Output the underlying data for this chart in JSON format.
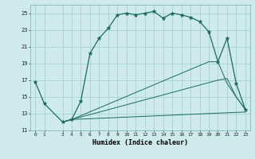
{
  "xlabel": "Humidex (Indice chaleur)",
  "bg_color": "#ceeaea",
  "grid_color": "#9ecece",
  "line_color": "#1a6b5a",
  "xlim": [
    -0.5,
    23.5
  ],
  "ylim": [
    11,
    26
  ],
  "yticks": [
    11,
    13,
    15,
    17,
    19,
    21,
    23,
    25
  ],
  "xticks": [
    0,
    1,
    3,
    4,
    5,
    6,
    7,
    8,
    9,
    10,
    11,
    12,
    13,
    14,
    15,
    16,
    17,
    18,
    19,
    20,
    21,
    22,
    23
  ],
  "line1_x": [
    0,
    1,
    3,
    4,
    5,
    6,
    7,
    8,
    9,
    10,
    11,
    12,
    13,
    14,
    15,
    16,
    17,
    18,
    19,
    20,
    21,
    22,
    23
  ],
  "line1_y": [
    16.8,
    14.2,
    12.0,
    12.3,
    14.5,
    20.2,
    22.0,
    23.2,
    24.8,
    25.0,
    24.8,
    25.0,
    25.2,
    24.4,
    25.0,
    24.8,
    24.5,
    24.0,
    22.8,
    19.2,
    22.0,
    16.6,
    13.5
  ],
  "line2_x": [
    3,
    4,
    23
  ],
  "line2_y": [
    12.0,
    12.3,
    13.2
  ],
  "line3_x": [
    3,
    4,
    20,
    21,
    22,
    23
  ],
  "line3_y": [
    12.0,
    12.3,
    17.0,
    17.2,
    15.0,
    13.5
  ],
  "line4_x": [
    3,
    4,
    19,
    20,
    21,
    22,
    23
  ],
  "line4_y": [
    12.0,
    12.3,
    19.2,
    19.2,
    16.6,
    15.0,
    13.5
  ]
}
